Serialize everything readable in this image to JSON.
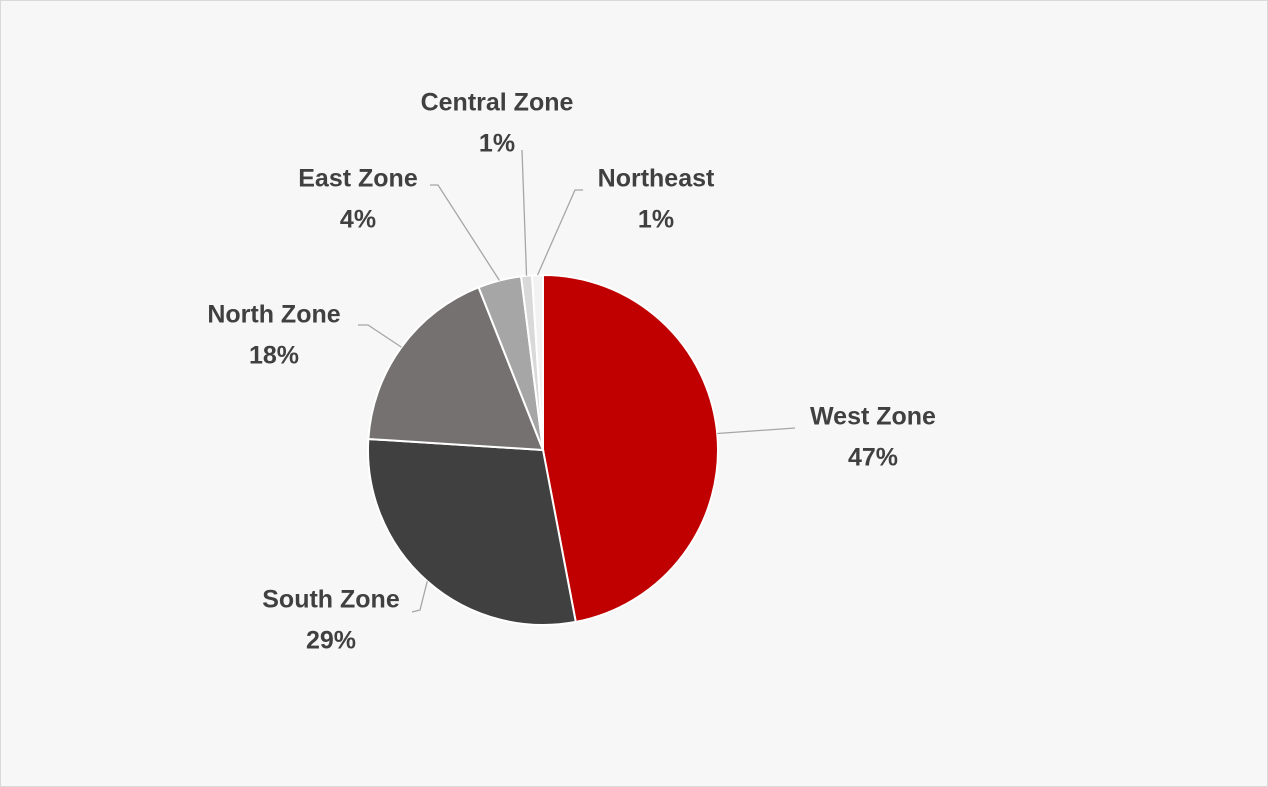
{
  "chart_data": {
    "type": "pie",
    "categories": [
      "West Zone",
      "South Zone",
      "North Zone",
      "East Zone",
      "Central Zone",
      "Northeast"
    ],
    "values": [
      47,
      29,
      18,
      4,
      1,
      1
    ],
    "value_labels": [
      "47%",
      "29%",
      "18%",
      "4%",
      "1%",
      "1%"
    ],
    "colors": [
      "#c00000",
      "#404040",
      "#767171",
      "#a6a6a6",
      "#d9d9d9",
      "#f2f2f2"
    ]
  }
}
